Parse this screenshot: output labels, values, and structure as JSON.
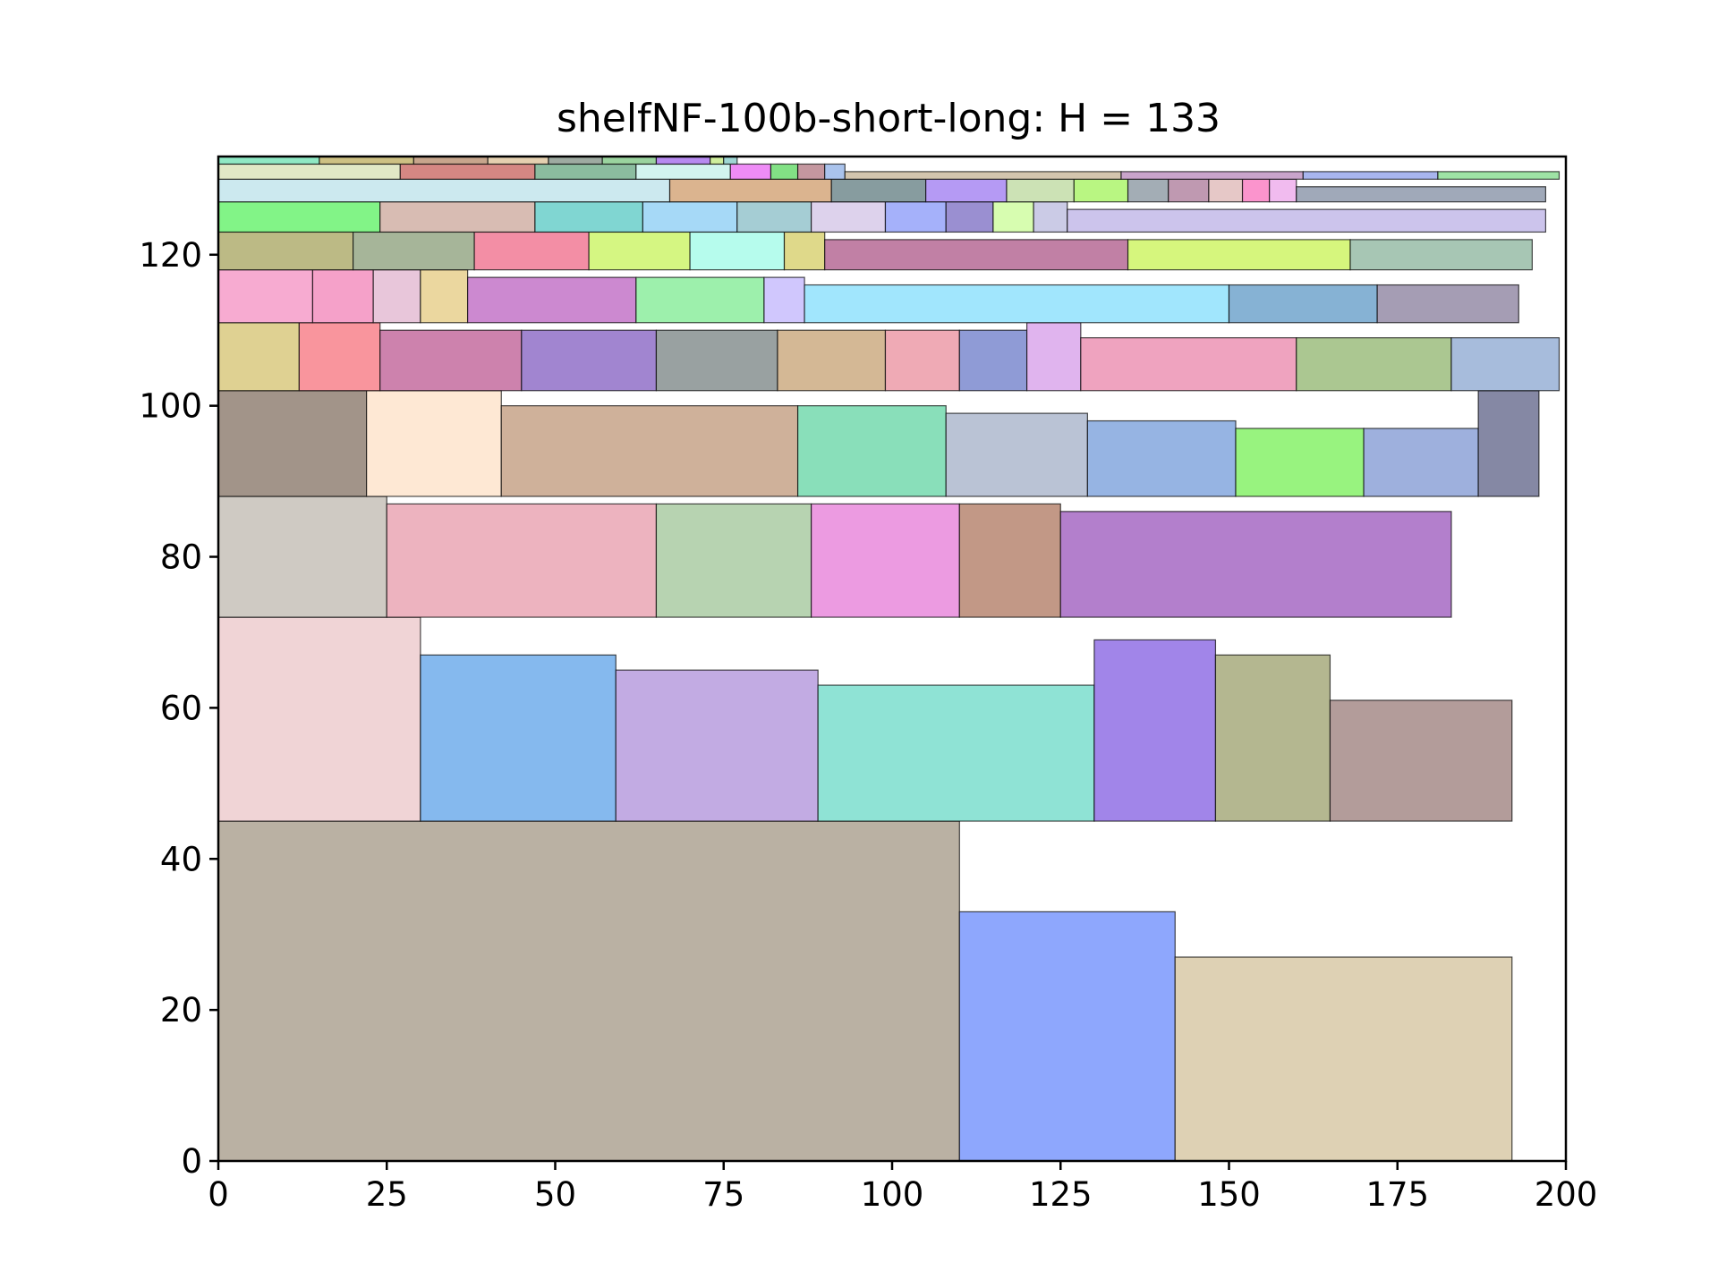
{
  "chart_data": {
    "type": "rectangle-packing",
    "title": "shelfNF-100b-short-long: H = 133",
    "xlabel": "",
    "ylabel": "",
    "xlim": [
      0,
      200
    ],
    "ylim": [
      0,
      133
    ],
    "xticks": [
      0,
      25,
      50,
      75,
      100,
      125,
      150,
      175,
      200
    ],
    "yticks": [
      0,
      20,
      40,
      60,
      80,
      100,
      120
    ],
    "grid": false,
    "strip_width": 200,
    "packing_height": 133,
    "items": [
      {
        "x": 0,
        "y": 0,
        "w": 110,
        "h": 45,
        "color": "#bab1a3"
      },
      {
        "x": 110,
        "y": 0,
        "w": 32,
        "h": 33,
        "color": "#8ea7fd"
      },
      {
        "x": 142,
        "y": 0,
        "w": 50,
        "h": 27,
        "color": "#ded1b4"
      },
      {
        "x": 0,
        "y": 45,
        "w": 30,
        "h": 27,
        "color": "#f0d4d6"
      },
      {
        "x": 30,
        "y": 45,
        "w": 29,
        "h": 22,
        "color": "#85b9ee"
      },
      {
        "x": 59,
        "y": 45,
        "w": 30,
        "h": 20,
        "color": "#c2abe3"
      },
      {
        "x": 89,
        "y": 45,
        "w": 41,
        "h": 18,
        "color": "#8fe3d5"
      },
      {
        "x": 130,
        "y": 45,
        "w": 18,
        "h": 24,
        "color": "#a185e9"
      },
      {
        "x": 148,
        "y": 45,
        "w": 17,
        "h": 22,
        "color": "#b4b790"
      },
      {
        "x": 165,
        "y": 45,
        "w": 27,
        "h": 16,
        "color": "#b39c9a"
      },
      {
        "x": 0,
        "y": 72,
        "w": 25,
        "h": 16,
        "color": "#cfcac3"
      },
      {
        "x": 25,
        "y": 72,
        "w": 40,
        "h": 15,
        "color": "#edb3bf"
      },
      {
        "x": 65,
        "y": 72,
        "w": 23,
        "h": 15,
        "color": "#b7d3b1"
      },
      {
        "x": 88,
        "y": 72,
        "w": 22,
        "h": 15,
        "color": "#ec9be1"
      },
      {
        "x": 110,
        "y": 72,
        "w": 15,
        "h": 15,
        "color": "#c29886"
      },
      {
        "x": 125,
        "y": 72,
        "w": 58,
        "h": 14,
        "color": "#b37fcc"
      },
      {
        "x": 0,
        "y": 88,
        "w": 22,
        "h": 14,
        "color": "#a29489"
      },
      {
        "x": 22,
        "y": 88,
        "w": 20,
        "h": 14,
        "color": "#fee8d4"
      },
      {
        "x": 42,
        "y": 88,
        "w": 44,
        "h": 12,
        "color": "#cfb19a"
      },
      {
        "x": 86,
        "y": 88,
        "w": 22,
        "h": 12,
        "color": "#89dfba"
      },
      {
        "x": 108,
        "y": 88,
        "w": 21,
        "h": 11,
        "color": "#bac3d5"
      },
      {
        "x": 129,
        "y": 88,
        "w": 22,
        "h": 10,
        "color": "#96b4e3"
      },
      {
        "x": 151,
        "y": 88,
        "w": 19,
        "h": 9,
        "color": "#98f37f"
      },
      {
        "x": 170,
        "y": 88,
        "w": 17,
        "h": 9,
        "color": "#9eb0dd"
      },
      {
        "x": 187,
        "y": 88,
        "w": 9,
        "h": 14,
        "color": "#8588a4"
      },
      {
        "x": 0,
        "y": 102,
        "w": 12,
        "h": 9,
        "color": "#dfd192"
      },
      {
        "x": 12,
        "y": 102,
        "w": 12,
        "h": 9,
        "color": "#f9959d"
      },
      {
        "x": 24,
        "y": 102,
        "w": 21,
        "h": 8,
        "color": "#cd82ad"
      },
      {
        "x": 45,
        "y": 102,
        "w": 20,
        "h": 8,
        "color": "#a185d0"
      },
      {
        "x": 65,
        "y": 102,
        "w": 18,
        "h": 8,
        "color": "#99a1a1"
      },
      {
        "x": 83,
        "y": 102,
        "w": 16,
        "h": 8,
        "color": "#d4b895"
      },
      {
        "x": 99,
        "y": 102,
        "w": 11,
        "h": 8,
        "color": "#efaab5"
      },
      {
        "x": 110,
        "y": 102,
        "w": 10,
        "h": 8,
        "color": "#8f9bd6"
      },
      {
        "x": 120,
        "y": 102,
        "w": 8,
        "h": 9,
        "color": "#e0b4ee"
      },
      {
        "x": 128,
        "y": 102,
        "w": 32,
        "h": 7,
        "color": "#efa3bf"
      },
      {
        "x": 160,
        "y": 102,
        "w": 23,
        "h": 7,
        "color": "#abc791"
      },
      {
        "x": 183,
        "y": 102,
        "w": 16,
        "h": 7,
        "color": "#a7bcdc"
      },
      {
        "x": 0,
        "y": 111,
        "w": 14,
        "h": 7,
        "color": "#f7abd1"
      },
      {
        "x": 14,
        "y": 111,
        "w": 9,
        "h": 7,
        "color": "#f5a1c9"
      },
      {
        "x": 23,
        "y": 111,
        "w": 7,
        "h": 7,
        "color": "#e8c6da"
      },
      {
        "x": 30,
        "y": 111,
        "w": 7,
        "h": 7,
        "color": "#ebd79f"
      },
      {
        "x": 37,
        "y": 111,
        "w": 25,
        "h": 6,
        "color": "#cc89d0"
      },
      {
        "x": 62,
        "y": 111,
        "w": 19,
        "h": 6,
        "color": "#9df0ac"
      },
      {
        "x": 81,
        "y": 111,
        "w": 6,
        "h": 6,
        "color": "#d0c7fd"
      },
      {
        "x": 87,
        "y": 111,
        "w": 63,
        "h": 5,
        "color": "#a1e6fd"
      },
      {
        "x": 150,
        "y": 111,
        "w": 22,
        "h": 5,
        "color": "#86b2d4"
      },
      {
        "x": 172,
        "y": 111,
        "w": 21,
        "h": 5,
        "color": "#a59db4"
      },
      {
        "x": 0,
        "y": 118,
        "w": 20,
        "h": 5,
        "color": "#bcba85"
      },
      {
        "x": 20,
        "y": 118,
        "w": 18,
        "h": 5,
        "color": "#a6b599"
      },
      {
        "x": 38,
        "y": 118,
        "w": 17,
        "h": 5,
        "color": "#f38ea5"
      },
      {
        "x": 55,
        "y": 118,
        "w": 15,
        "h": 5,
        "color": "#d5f682"
      },
      {
        "x": 70,
        "y": 118,
        "w": 14,
        "h": 5,
        "color": "#b6fced"
      },
      {
        "x": 84,
        "y": 118,
        "w": 6,
        "h": 5,
        "color": "#dfd98a"
      },
      {
        "x": 90,
        "y": 118,
        "w": 45,
        "h": 4,
        "color": "#c180a5"
      },
      {
        "x": 135,
        "y": 118,
        "w": 33,
        "h": 4,
        "color": "#d6f67d"
      },
      {
        "x": 168,
        "y": 118,
        "w": 27,
        "h": 4,
        "color": "#a7c6b4"
      },
      {
        "x": 0,
        "y": 123,
        "w": 24,
        "h": 4,
        "color": "#82f487"
      },
      {
        "x": 24,
        "y": 123,
        "w": 23,
        "h": 4,
        "color": "#d8bcb3"
      },
      {
        "x": 47,
        "y": 123,
        "w": 16,
        "h": 4,
        "color": "#80d6d2"
      },
      {
        "x": 63,
        "y": 123,
        "w": 14,
        "h": 4,
        "color": "#a6d9f7"
      },
      {
        "x": 77,
        "y": 123,
        "w": 11,
        "h": 4,
        "color": "#a5cdd4"
      },
      {
        "x": 88,
        "y": 123,
        "w": 11,
        "h": 4,
        "color": "#ddd2ec"
      },
      {
        "x": 99,
        "y": 123,
        "w": 9,
        "h": 4,
        "color": "#a5b1fa"
      },
      {
        "x": 108,
        "y": 123,
        "w": 7,
        "h": 4,
        "color": "#9a8fd1"
      },
      {
        "x": 115,
        "y": 123,
        "w": 6,
        "h": 4,
        "color": "#d7fdb0"
      },
      {
        "x": 121,
        "y": 123,
        "w": 5,
        "h": 4,
        "color": "#cbcbe6"
      },
      {
        "x": 126,
        "y": 123,
        "w": 71,
        "h": 3,
        "color": "#ccc4ec"
      },
      {
        "x": 0,
        "y": 127,
        "w": 67,
        "h": 3,
        "color": "#cce9ef"
      },
      {
        "x": 67,
        "y": 127,
        "w": 24,
        "h": 3,
        "color": "#dbb48f"
      },
      {
        "x": 91,
        "y": 127,
        "w": 14,
        "h": 3,
        "color": "#879c9f"
      },
      {
        "x": 105,
        "y": 127,
        "w": 12,
        "h": 3,
        "color": "#b59af4"
      },
      {
        "x": 117,
        "y": 127,
        "w": 10,
        "h": 3,
        "color": "#cce2b5"
      },
      {
        "x": 127,
        "y": 127,
        "w": 8,
        "h": 3,
        "color": "#b9f682"
      },
      {
        "x": 135,
        "y": 127,
        "w": 6,
        "h": 3,
        "color": "#a3adb5"
      },
      {
        "x": 141,
        "y": 127,
        "w": 6,
        "h": 3,
        "color": "#bf99b1"
      },
      {
        "x": 147,
        "y": 127,
        "w": 5,
        "h": 3,
        "color": "#e6c8c7"
      },
      {
        "x": 152,
        "y": 127,
        "w": 4,
        "h": 3,
        "color": "#fb94cd"
      },
      {
        "x": 156,
        "y": 127,
        "w": 4,
        "h": 3,
        "color": "#f1bbef"
      },
      {
        "x": 160,
        "y": 127,
        "w": 37,
        "h": 2,
        "color": "#a0a9b9"
      },
      {
        "x": 0,
        "y": 130,
        "w": 27,
        "h": 2,
        "color": "#e1e8c6"
      },
      {
        "x": 27,
        "y": 130,
        "w": 20,
        "h": 2,
        "color": "#d58783"
      },
      {
        "x": 47,
        "y": 130,
        "w": 15,
        "h": 2,
        "color": "#8bbc9f"
      },
      {
        "x": 62,
        "y": 130,
        "w": 14,
        "h": 2,
        "color": "#d2f4ef"
      },
      {
        "x": 76,
        "y": 130,
        "w": 6,
        "h": 2,
        "color": "#ee8cf6"
      },
      {
        "x": 82,
        "y": 130,
        "w": 4,
        "h": 2,
        "color": "#82e185"
      },
      {
        "x": 86,
        "y": 130,
        "w": 4,
        "h": 2,
        "color": "#c4979f"
      },
      {
        "x": 90,
        "y": 130,
        "w": 3,
        "h": 2,
        "color": "#aac3ec"
      },
      {
        "x": 93,
        "y": 130,
        "w": 41,
        "h": 1,
        "color": "#d3c5ae"
      },
      {
        "x": 134,
        "y": 130,
        "w": 27,
        "h": 1,
        "color": "#c9a4cb"
      },
      {
        "x": 161,
        "y": 130,
        "w": 20,
        "h": 1,
        "color": "#a8b5ee"
      },
      {
        "x": 181,
        "y": 130,
        "w": 18,
        "h": 1,
        "color": "#9ee3a5"
      },
      {
        "x": 0,
        "y": 132,
        "w": 15,
        "h": 1,
        "color": "#8fe8c4"
      },
      {
        "x": 15,
        "y": 132,
        "w": 14,
        "h": 1,
        "color": "#cdc083"
      },
      {
        "x": 29,
        "y": 132,
        "w": 11,
        "h": 1,
        "color": "#c7a58c"
      },
      {
        "x": 40,
        "y": 132,
        "w": 9,
        "h": 1,
        "color": "#e5d0b0"
      },
      {
        "x": 49,
        "y": 132,
        "w": 8,
        "h": 1,
        "color": "#9eaaa1"
      },
      {
        "x": 57,
        "y": 132,
        "w": 8,
        "h": 1,
        "color": "#9ad39e"
      },
      {
        "x": 65,
        "y": 132,
        "w": 8,
        "h": 1,
        "color": "#b78af0"
      },
      {
        "x": 73,
        "y": 132,
        "w": 2,
        "h": 1,
        "color": "#cfee9c"
      },
      {
        "x": 75,
        "y": 132,
        "w": 2,
        "h": 1,
        "color": "#9fd6d4"
      }
    ]
  }
}
